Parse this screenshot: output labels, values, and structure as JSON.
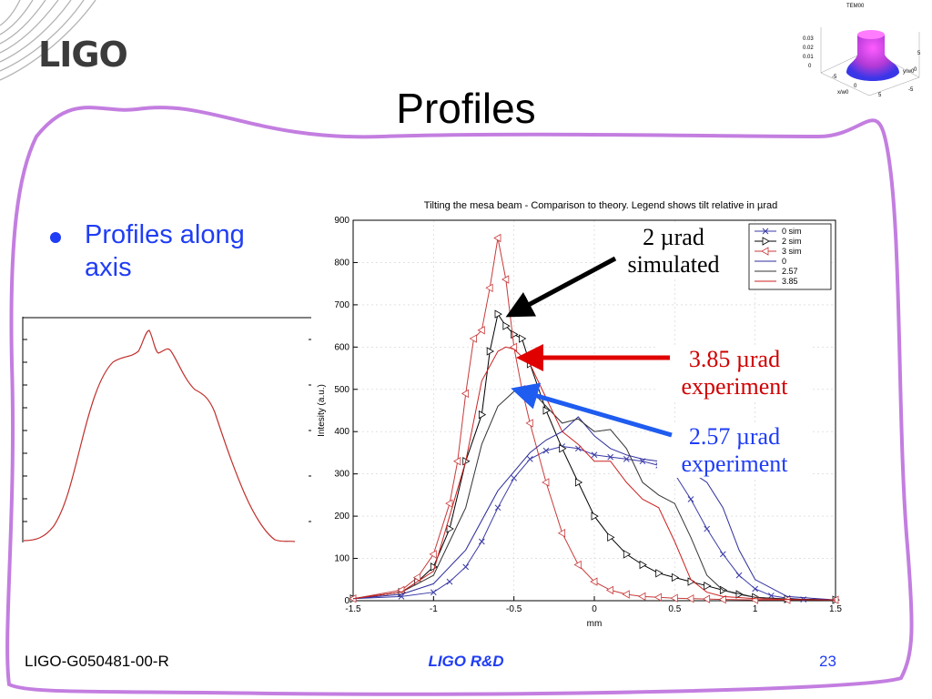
{
  "slide": {
    "logo": "LIGO",
    "title": "Profiles",
    "bullet": "Profiles along axis",
    "footer_left": "LIGO-G050481-00-R",
    "footer_center": "LIGO R&D",
    "page_number": "23",
    "colors": {
      "frame": "#c37ee0",
      "bullet": "#1f3df5",
      "red_annotation": "#d00000"
    }
  },
  "inset_3d": {
    "title": "TEM00",
    "z_ticks": [
      "0.03",
      "0.02",
      "0.01",
      "0"
    ],
    "x_label": "x/w0",
    "y_label": "y/w0",
    "ticks": [
      "-5",
      "0",
      "5",
      "-5",
      "0",
      "5"
    ]
  },
  "annotations": {
    "sim2": "2 µrad simulated",
    "exp385": "3.85 µrad experiment",
    "exp257": "2.57 µrad experiment"
  },
  "chart_data": {
    "type": "line",
    "title": "Tilting the mesa beam - Comparison to theory. Legend shows tilt relative in µrad",
    "xlabel": "mm",
    "ylabel": "Intesity (a.u.)",
    "xlim": [
      -1.5,
      1.5
    ],
    "ylim": [
      0,
      900
    ],
    "x_ticks": [
      "-1.5",
      "-1",
      "-0.5",
      "0",
      "0.5",
      "1",
      "1.5"
    ],
    "y_ticks": [
      "0",
      "100",
      "200",
      "300",
      "400",
      "500",
      "600",
      "700",
      "800",
      "900"
    ],
    "legend_position": "top-right",
    "grid": true,
    "series": [
      {
        "name": "0 sim",
        "color": "#3a3aa8",
        "marker": "x",
        "x": [
          -1.5,
          -1.2,
          -1.0,
          -0.9,
          -0.8,
          -0.7,
          -0.6,
          -0.5,
          -0.4,
          -0.3,
          -0.2,
          -0.1,
          0.0,
          0.1,
          0.2,
          0.3,
          0.4,
          0.5,
          0.6,
          0.7,
          0.8,
          0.9,
          1.0,
          1.1,
          1.2,
          1.3,
          1.5
        ],
        "y": [
          5,
          10,
          20,
          45,
          80,
          140,
          220,
          290,
          335,
          355,
          365,
          360,
          345,
          340,
          335,
          330,
          320,
          300,
          240,
          170,
          110,
          60,
          28,
          12,
          6,
          3,
          2
        ]
      },
      {
        "name": "2 sim",
        "color": "#000000",
        "marker": "triangle-right",
        "x": [
          -1.5,
          -1.2,
          -1.1,
          -1.0,
          -0.9,
          -0.8,
          -0.7,
          -0.65,
          -0.6,
          -0.55,
          -0.5,
          -0.45,
          -0.4,
          -0.3,
          -0.2,
          -0.1,
          0.0,
          0.1,
          0.2,
          0.3,
          0.4,
          0.5,
          0.6,
          0.7,
          0.8,
          0.9,
          1.0,
          1.2,
          1.5
        ],
        "y": [
          5,
          20,
          45,
          80,
          170,
          330,
          440,
          590,
          678,
          650,
          630,
          620,
          560,
          450,
          360,
          280,
          200,
          150,
          110,
          85,
          65,
          55,
          45,
          35,
          25,
          15,
          8,
          4,
          2
        ]
      },
      {
        "name": "3 sim",
        "color": "#c83a3a",
        "marker": "triangle-left",
        "x": [
          -1.5,
          -1.2,
          -1.1,
          -1.0,
          -0.9,
          -0.85,
          -0.8,
          -0.75,
          -0.7,
          -0.65,
          -0.6,
          -0.55,
          -0.5,
          -0.45,
          -0.4,
          -0.3,
          -0.2,
          -0.1,
          0.0,
          0.1,
          0.2,
          0.3,
          0.4,
          0.5,
          0.6,
          0.7,
          0.8,
          1.0,
          1.2,
          1.5
        ],
        "y": [
          5,
          25,
          55,
          110,
          230,
          330,
          490,
          620,
          640,
          740,
          858,
          760,
          600,
          500,
          420,
          280,
          160,
          85,
          45,
          25,
          15,
          10,
          8,
          6,
          5,
          4,
          3,
          2,
          2,
          2
        ]
      },
      {
        "name": "0",
        "color": "#2c2c9c",
        "marker": "none",
        "x": [
          -1.5,
          -1.2,
          -1.0,
          -0.8,
          -0.6,
          -0.4,
          -0.3,
          -0.2,
          -0.1,
          0.0,
          0.1,
          0.2,
          0.3,
          0.4,
          0.5,
          0.6,
          0.7,
          0.8,
          0.9,
          1.0,
          1.2,
          1.5
        ],
        "y": [
          5,
          15,
          40,
          120,
          260,
          350,
          380,
          400,
          435,
          390,
          360,
          345,
          335,
          330,
          320,
          305,
          280,
          220,
          120,
          50,
          10,
          2
        ]
      },
      {
        "name": "2.57",
        "color": "#333333",
        "marker": "none",
        "x": [
          -1.5,
          -1.2,
          -1.0,
          -0.8,
          -0.7,
          -0.6,
          -0.5,
          -0.4,
          -0.3,
          -0.2,
          -0.1,
          0.0,
          0.1,
          0.2,
          0.3,
          0.4,
          0.5,
          0.6,
          0.7,
          0.8,
          1.0,
          1.2,
          1.5
        ],
        "y": [
          5,
          20,
          60,
          220,
          370,
          460,
          495,
          500,
          460,
          420,
          430,
          400,
          405,
          360,
          280,
          250,
          230,
          150,
          60,
          25,
          8,
          3,
          2
        ]
      },
      {
        "name": "3.85",
        "color": "#cc2222",
        "marker": "none",
        "x": [
          -1.5,
          -1.2,
          -1.0,
          -0.8,
          -0.7,
          -0.6,
          -0.55,
          -0.5,
          -0.4,
          -0.3,
          -0.2,
          -0.1,
          0.0,
          0.1,
          0.2,
          0.3,
          0.4,
          0.5,
          0.6,
          0.7,
          0.8,
          1.0,
          1.2,
          1.5
        ],
        "y": [
          5,
          20,
          70,
          330,
          520,
          590,
          600,
          595,
          560,
          480,
          400,
          370,
          330,
          330,
          280,
          240,
          220,
          140,
          50,
          20,
          10,
          5,
          3,
          2
        ]
      }
    ]
  }
}
